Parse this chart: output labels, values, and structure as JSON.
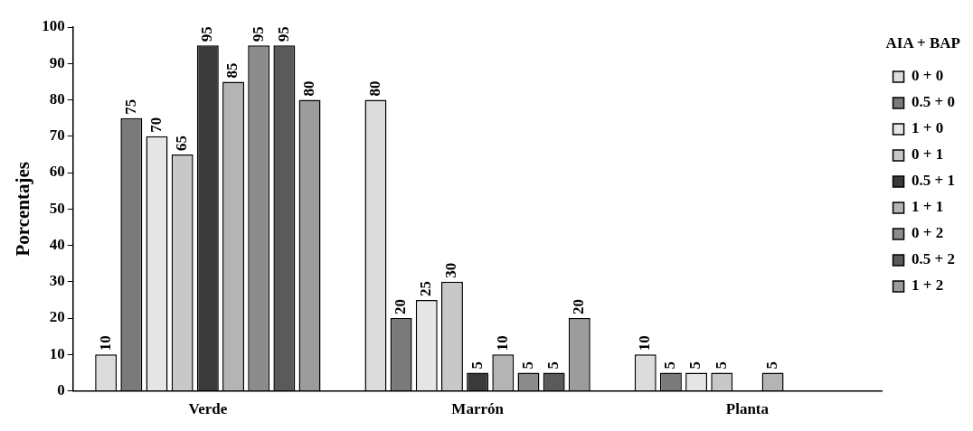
{
  "chart_data": {
    "type": "bar",
    "ylabel": "Porcentajes",
    "legend_title": "AIA + BAP",
    "categories": [
      "Verde",
      "Marrón",
      "Planta"
    ],
    "series": [
      {
        "name": "0 + 0",
        "color": "#dcdcdc",
        "values": [
          10,
          80,
          10
        ]
      },
      {
        "name": "0.5 + 0",
        "color": "#7a7a7a",
        "values": [
          75,
          20,
          5
        ]
      },
      {
        "name": "1 + 0",
        "color": "#e6e6e6",
        "values": [
          70,
          25,
          5
        ]
      },
      {
        "name": "0 + 1",
        "color": "#c8c8c8",
        "values": [
          65,
          30,
          5
        ]
      },
      {
        "name": "0.5 + 1",
        "color": "#3a3a3a",
        "values": [
          95,
          5,
          null
        ]
      },
      {
        "name": "1 + 1",
        "color": "#b4b4b4",
        "values": [
          85,
          10,
          5
        ]
      },
      {
        "name": "0 + 2",
        "color": "#8c8c8c",
        "values": [
          95,
          5,
          null
        ]
      },
      {
        "name": "0.5 + 2",
        "color": "#5a5a5a",
        "values": [
          95,
          5,
          null
        ]
      },
      {
        "name": "1 + 2",
        "color": "#9c9c9c",
        "values": [
          80,
          20,
          null
        ]
      }
    ],
    "ylim": [
      0,
      100
    ],
    "yticks": [
      0,
      10,
      20,
      30,
      40,
      50,
      60,
      70,
      80,
      90,
      100
    ],
    "data_labels": true,
    "grid": false,
    "legend": "right"
  }
}
